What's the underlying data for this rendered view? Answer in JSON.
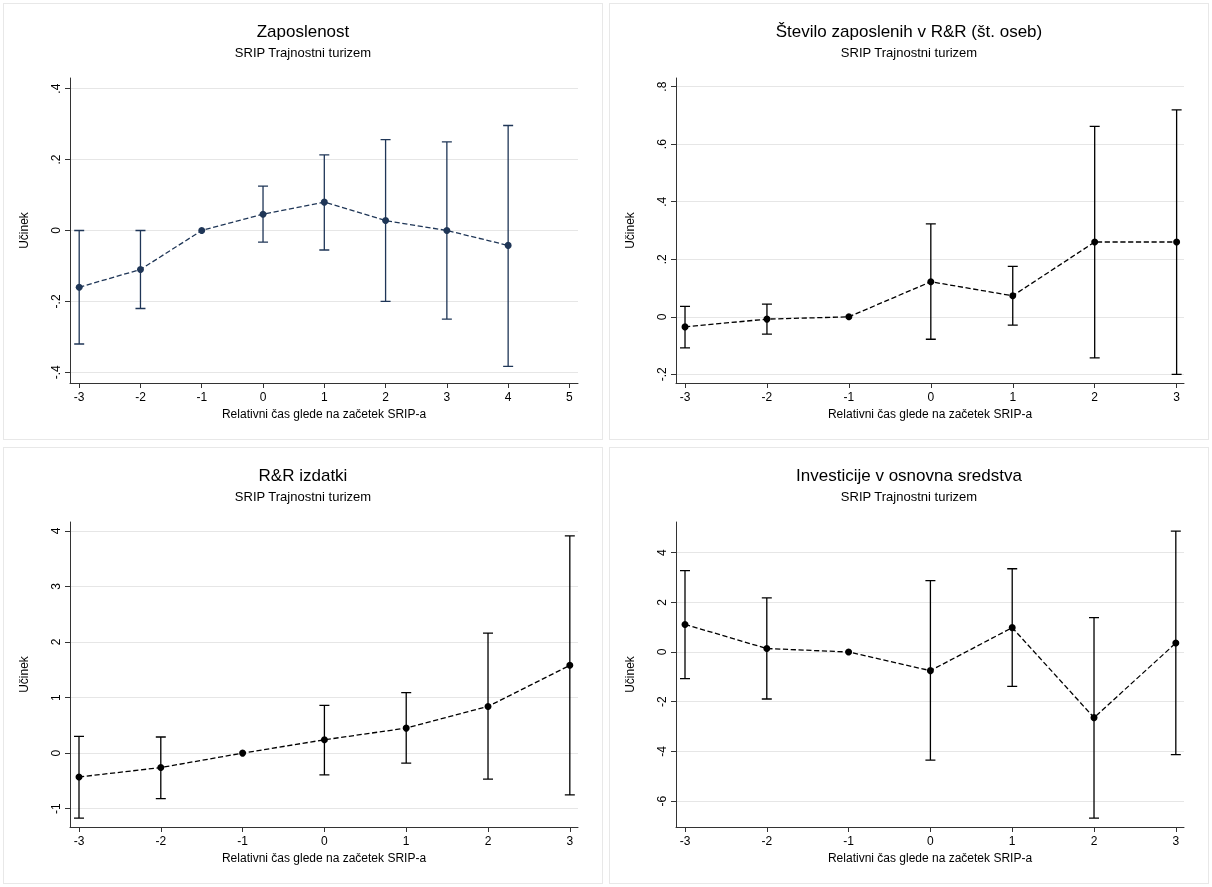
{
  "chart_data": [
    {
      "type": "line",
      "title": "Zaposlenost",
      "subtitle": "SRIP Trajnostni turizem",
      "xlabel": "Relativni čas glede na začetek SRIP-a",
      "ylabel": "Učinek",
      "x": [
        -3,
        -2,
        -1,
        0,
        1,
        2,
        3,
        4
      ],
      "xlim": [
        -3.15,
        5.14
      ],
      "xticks": [
        -3,
        -2,
        -1,
        0,
        1,
        2,
        3,
        4,
        5
      ],
      "ylim": [
        -0.43,
        0.43
      ],
      "yticks": [
        {
          "value": -0.4,
          "label": "-.4"
        },
        {
          "value": -0.2,
          "label": "-.2"
        },
        0,
        {
          "value": 0.2,
          "label": ".2"
        },
        {
          "value": 0.4,
          "label": ".4"
        }
      ],
      "grid": "y",
      "marker": "circle",
      "line_style": "dashed",
      "series": [
        {
          "color": "#1f3657",
          "values": [
            -0.16,
            -0.11,
            0,
            0.046,
            0.08,
            0.028,
            0.0,
            -0.042
          ],
          "errors": [
            [
              -0.32,
              0.0
            ],
            [
              -0.22,
              0.0
            ],
            null,
            [
              -0.033,
              0.125
            ],
            [
              -0.055,
              0.213
            ],
            [
              -0.2,
              0.256
            ],
            [
              -0.25,
              0.25
            ],
            [
              -0.383,
              0.296
            ]
          ]
        }
      ]
    },
    {
      "type": "line",
      "title": "Število zaposlenih v R&R (št. oseb)",
      "subtitle": "SRIP Trajnostni turizem",
      "xlabel": "Relativni čas glede na začetek SRIP-a",
      "ylabel": "Učinek",
      "x": [
        -3,
        -2,
        -1,
        0,
        1,
        2,
        3
      ],
      "xlim": [
        -3.11,
        3.09
      ],
      "xticks": [
        -3,
        -2,
        -1,
        0,
        1,
        2,
        3
      ],
      "ylim": [
        -0.23,
        0.83
      ],
      "yticks": [
        {
          "value": -0.2,
          "label": "-.2"
        },
        0,
        {
          "value": 0.2,
          "label": ".2"
        },
        {
          "value": 0.4,
          "label": ".4"
        },
        {
          "value": 0.6,
          "label": ".6"
        },
        {
          "value": 0.8,
          "label": ".8"
        }
      ],
      "grid": "y",
      "marker": "circle",
      "line_style": "dashed",
      "series": [
        {
          "color": "#000000",
          "values": [
            -0.035,
            -0.008,
            0,
            0.122,
            0.073,
            0.26,
            0.26
          ],
          "errors": [
            [
              -0.108,
              0.036
            ],
            [
              -0.06,
              0.044
            ],
            null,
            [
              -0.078,
              0.323
            ],
            [
              -0.029,
              0.175
            ],
            [
              -0.143,
              0.662
            ],
            [
              -0.2,
              0.719
            ]
          ]
        }
      ]
    },
    {
      "type": "line",
      "title": "R&R izdatki",
      "subtitle": "SRIP Trajnostni turizem",
      "xlabel": "Relativni čas glede na začetek SRIP-a",
      "ylabel": "Učinek",
      "x": [
        -3,
        -2,
        -1,
        0,
        1,
        2,
        3
      ],
      "xlim": [
        -3.11,
        3.1
      ],
      "xticks": [
        -3,
        -2,
        -1,
        0,
        1,
        2,
        3
      ],
      "ylim": [
        -1.33,
        4.16
      ],
      "yticks": [
        -1,
        0,
        1,
        2,
        3,
        4
      ],
      "grid": "y",
      "marker": "circle",
      "line_style": "dashed",
      "series": [
        {
          "color": "#000000",
          "values": [
            -0.43,
            -0.26,
            0,
            0.24,
            0.45,
            0.84,
            1.58
          ],
          "errors": [
            [
              -1.17,
              0.3
            ],
            [
              -0.82,
              0.29
            ],
            null,
            [
              -0.39,
              0.86
            ],
            [
              -0.18,
              1.09
            ],
            [
              -0.47,
              2.16
            ],
            [
              -0.75,
              3.91
            ]
          ]
        }
      ]
    },
    {
      "type": "line",
      "title": "Investicije v osnovna sredstva",
      "subtitle": "SRIP Trajnostni turizem",
      "xlabel": "Relativni čas glede na začetek SRIP-a",
      "ylabel": "Učinek",
      "x": [
        -3,
        -2,
        -1,
        0,
        1,
        2,
        3
      ],
      "xlim": [
        -3.11,
        3.1
      ],
      "xticks": [
        -3,
        -2,
        -1,
        0,
        1,
        2,
        3
      ],
      "ylim": [
        -7.04,
        5.23
      ],
      "yticks": [
        -6,
        -4,
        -2,
        0,
        2,
        4
      ],
      "grid": "y",
      "marker": "circle",
      "line_style": "dashed",
      "series": [
        {
          "color": "#000000",
          "values": [
            1.11,
            0.14,
            0,
            -0.75,
            0.98,
            -2.64,
            0.36
          ],
          "errors": [
            [
              -1.07,
              3.27
            ],
            [
              -1.89,
              2.18
            ],
            null,
            [
              -4.35,
              2.87
            ],
            [
              -1.38,
              3.35
            ],
            [
              -6.68,
              1.38
            ],
            [
              -4.13,
              4.86
            ]
          ]
        }
      ]
    }
  ]
}
